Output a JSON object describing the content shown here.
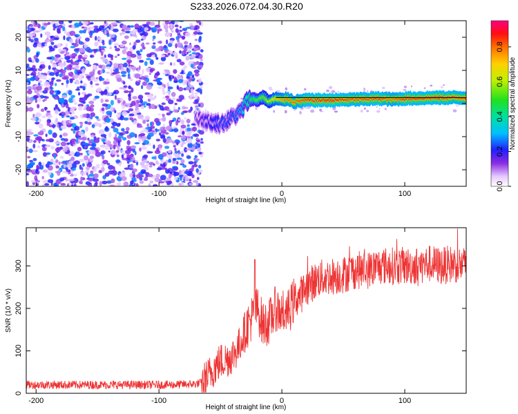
{
  "figure_title": "S233.2026.072.04.30.R20",
  "chart_data": [
    {
      "type": "heatmap",
      "title": "S233.2026.072.04.30.R20",
      "xlabel": "Height of straight line (km)",
      "ylabel": "Frequency (Hz)",
      "xlim": [
        -208,
        150
      ],
      "ylim": [
        -25,
        25
      ],
      "xticks": [
        -200,
        -100,
        0,
        100
      ],
      "yticks": [
        -20,
        -10,
        0,
        10,
        20
      ],
      "colorbar": {
        "label": "Normalized spectral amplitude",
        "range": [
          0,
          0.95
        ],
        "ticks": [
          0.0,
          0.2,
          0.4,
          0.6,
          0.8
        ]
      },
      "reference_line": {
        "x_start": -5,
        "x_end": 150,
        "frequency": 1.8
      },
      "signal_track": {
        "x": [
          -70,
          -60,
          -50,
          -45,
          -40,
          -35,
          -32,
          -30,
          -25,
          -20,
          -15,
          -10,
          -5,
          0,
          5,
          10,
          20,
          40,
          60,
          80,
          90,
          100,
          120,
          150
        ],
        "frequency": [
          -4,
          -5.5,
          -6,
          -5.5,
          -4,
          -3,
          -2,
          0,
          1.5,
          1,
          2,
          0.5,
          1.5,
          1,
          1.5,
          0.5,
          1,
          1,
          1.2,
          1.5,
          1.2,
          1.5,
          1.7,
          1.8
        ],
        "amplitude": [
          0.15,
          0.2,
          0.25,
          0.25,
          0.25,
          0.3,
          0.35,
          0.4,
          0.5,
          0.55,
          0.6,
          0.65,
          0.75,
          0.8,
          0.85,
          0.85,
          0.9,
          0.92,
          0.88,
          0.9,
          0.85,
          0.9,
          0.9,
          0.88
        ]
      },
      "noise_region": {
        "x_range": [
          -208,
          -65
        ],
        "amplitude_range": [
          0.0,
          0.25
        ]
      }
    },
    {
      "type": "line",
      "xlabel": "Height of straight line (km)",
      "ylabel": "SNR (10 * v/v)",
      "xlim": [
        -208,
        150
      ],
      "ylim": [
        0,
        390
      ],
      "xticks": [
        -200,
        -100,
        0,
        100
      ],
      "yticks": [
        0,
        100,
        200,
        300
      ],
      "color": "#ee3333",
      "series": [
        {
          "name": "SNR",
          "x": [
            -208,
            -180,
            -150,
            -120,
            -90,
            -70,
            -65,
            -60,
            -55,
            -50,
            -45,
            -40,
            -35,
            -30,
            -25,
            -20,
            -15,
            -10,
            -5,
            0,
            5,
            10,
            15,
            20,
            25,
            30,
            40,
            50,
            60,
            70,
            80,
            90,
            100,
            110,
            120,
            130,
            140,
            150
          ],
          "values": [
            20,
            20,
            20,
            20,
            20,
            22,
            25,
            40,
            60,
            75,
            80,
            90,
            110,
            150,
            175,
            200,
            160,
            170,
            200,
            190,
            190,
            220,
            230,
            250,
            260,
            270,
            275,
            280,
            290,
            290,
            300,
            300,
            300,
            300,
            305,
            300,
            305,
            300
          ]
        }
      ],
      "peak_spike": {
        "x": -22,
        "value": 315
      }
    }
  ]
}
